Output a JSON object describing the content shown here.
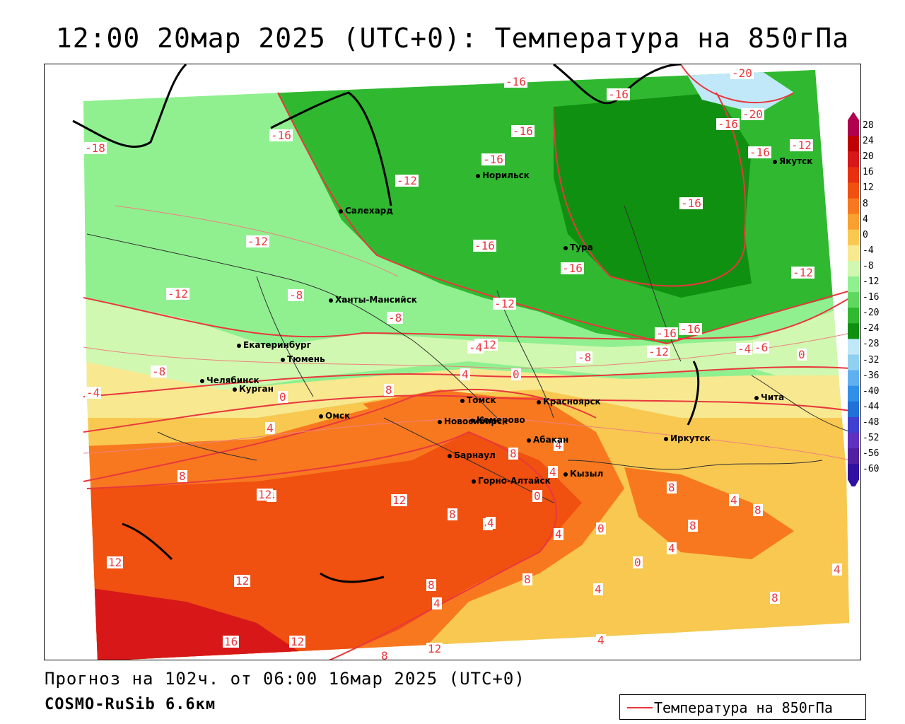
{
  "title": "12:00 20мар 2025 (UTC+0): Температура на 850гПа",
  "footer": {
    "forecast_line": "Прогноз на 102ч. от 06:00 16мар 2025 (UTC+0)",
    "model_line": "COSMO-RuSib 6.6км"
  },
  "legend": {
    "label": "Температура на 850гПа",
    "line_color": "#e8383d"
  },
  "colorbar": {
    "labels": [
      "28",
      "24",
      "20",
      "16",
      "12",
      "8",
      "4",
      "0",
      "-4",
      "-8",
      "-12",
      "-16",
      "-20",
      "-24",
      "-28",
      "-32",
      "-36",
      "-40",
      "-44",
      "-48",
      "-52",
      "-56",
      "-60"
    ],
    "colors": [
      "#b0004e",
      "#c00000",
      "#d81818",
      "#e83010",
      "#f05010",
      "#f87820",
      "#f8a030",
      "#f8c850",
      "#f8e890",
      "#d0f8b0",
      "#90f090",
      "#60d860",
      "#30b830",
      "#109010",
      "#c0e8f8",
      "#90d0f0",
      "#60b0f0",
      "#3090e8",
      "#2070d8",
      "#4040d0",
      "#6030c0",
      "#5020a0",
      "#3010a0"
    ]
  },
  "cities": [
    {
      "name": "Норильск"
    },
    {
      "name": "Салехард"
    },
    {
      "name": "Тура"
    },
    {
      "name": "Якутск"
    },
    {
      "name": "Ханты-Мансийск"
    },
    {
      "name": "Екатеринбург"
    },
    {
      "name": "Тюмень"
    },
    {
      "name": "Челябинск"
    },
    {
      "name": "Курган"
    },
    {
      "name": "Омск"
    },
    {
      "name": "Томск"
    },
    {
      "name": "Красноярск"
    },
    {
      "name": "Новосибирск"
    },
    {
      "name": "Кемерово"
    },
    {
      "name": "Абакан"
    },
    {
      "name": "Барнаул"
    },
    {
      "name": "Горно-Алтайск"
    },
    {
      "name": "Кызыл"
    },
    {
      "name": "Иркутск"
    },
    {
      "name": "Чита"
    }
  ],
  "isolines": {
    "labels": [
      "-16",
      "-20",
      "-16",
      "-16",
      "-16",
      "-20",
      "-16",
      "-18",
      "-16",
      "-12",
      "-16",
      "-16",
      "-12",
      "-12",
      "-12",
      "-16",
      "-16",
      "-16",
      "-12",
      "-12",
      "-8",
      "-12",
      "-8",
      "-16",
      "-12",
      "-4",
      "-8",
      "-4",
      "-6",
      "0",
      "4",
      "0",
      "-8",
      "-4",
      "0",
      "8",
      "4",
      "8",
      "4",
      "8",
      "4",
      "12",
      "12",
      "8",
      "4",
      "0",
      "4",
      "8",
      "4",
      "4",
      "0",
      "8",
      "4",
      "8",
      "12",
      "12",
      "8",
      "4",
      "8",
      "0",
      "4",
      "4",
      "16",
      "12",
      "12",
      "8",
      "4",
      "8",
      "4"
    ]
  }
}
